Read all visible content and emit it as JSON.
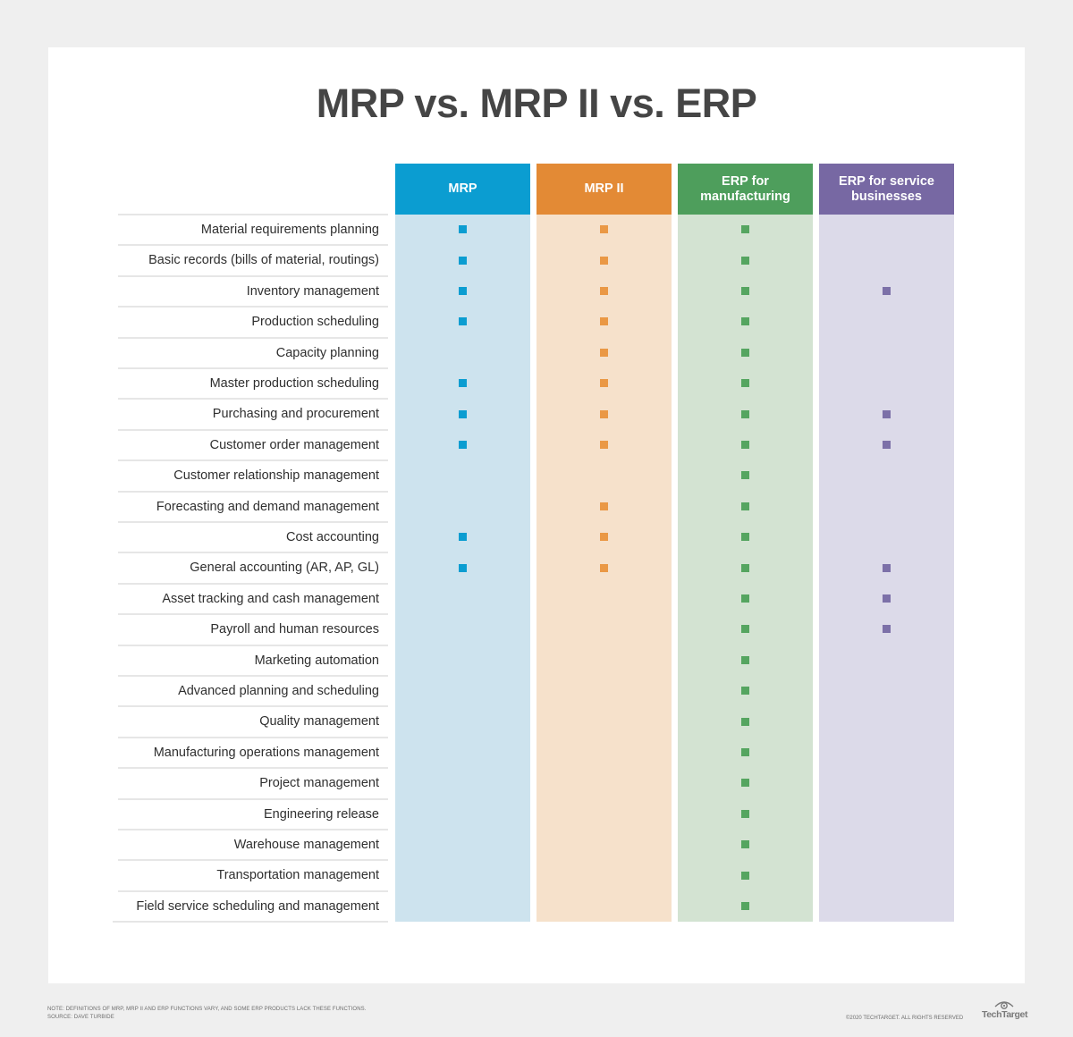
{
  "title": "MRP vs. MRP II vs. ERP",
  "columns": [
    {
      "label": "MRP",
      "header_color": "#0b9dd1",
      "bg_color": "#cde3ee",
      "mark_color": "#0b9dd1"
    },
    {
      "label": "MRP II",
      "header_color": "#e38a35",
      "bg_color": "#f6e1cb",
      "mark_color": "#ea9845"
    },
    {
      "label": "ERP for\nmanufacturing",
      "header_color": "#4e9e5c",
      "bg_color": "#d3e3d2",
      "mark_color": "#55a560"
    },
    {
      "label": "ERP for service\nbusinesses",
      "header_color": "#7768a3",
      "bg_color": "#dcdae9",
      "mark_color": "#7c70a8"
    }
  ],
  "rows": [
    {
      "label": "Material requirements planning",
      "marks": [
        true,
        true,
        true,
        false
      ]
    },
    {
      "label": "Basic records (bills of material, routings)",
      "marks": [
        true,
        true,
        true,
        false
      ]
    },
    {
      "label": "Inventory management",
      "marks": [
        true,
        true,
        true,
        true
      ]
    },
    {
      "label": "Production scheduling",
      "marks": [
        true,
        true,
        true,
        false
      ]
    },
    {
      "label": "Capacity planning",
      "marks": [
        false,
        true,
        true,
        false
      ]
    },
    {
      "label": "Master production scheduling",
      "marks": [
        true,
        true,
        true,
        false
      ]
    },
    {
      "label": "Purchasing and procurement",
      "marks": [
        true,
        true,
        true,
        true
      ]
    },
    {
      "label": "Customer order management",
      "marks": [
        true,
        true,
        true,
        true
      ]
    },
    {
      "label": "Customer relationship management",
      "marks": [
        false,
        false,
        true,
        false
      ]
    },
    {
      "label": "Forecasting and demand management",
      "marks": [
        false,
        true,
        true,
        false
      ]
    },
    {
      "label": "Cost accounting",
      "marks": [
        true,
        true,
        true,
        false
      ]
    },
    {
      "label": "General accounting (AR, AP, GL)",
      "marks": [
        true,
        true,
        true,
        true
      ]
    },
    {
      "label": "Asset tracking and cash management",
      "marks": [
        false,
        false,
        true,
        true
      ]
    },
    {
      "label": "Payroll and human resources",
      "marks": [
        false,
        false,
        true,
        true
      ]
    },
    {
      "label": "Marketing automation",
      "marks": [
        false,
        false,
        true,
        false
      ]
    },
    {
      "label": "Advanced planning and scheduling",
      "marks": [
        false,
        false,
        true,
        false
      ]
    },
    {
      "label": "Quality management",
      "marks": [
        false,
        false,
        true,
        false
      ]
    },
    {
      "label": "Manufacturing operations management",
      "marks": [
        false,
        false,
        true,
        false
      ]
    },
    {
      "label": "Project management",
      "marks": [
        false,
        false,
        true,
        false
      ]
    },
    {
      "label": "Engineering release",
      "marks": [
        false,
        false,
        true,
        false
      ]
    },
    {
      "label": "Warehouse management",
      "marks": [
        false,
        false,
        true,
        false
      ]
    },
    {
      "label": "Transportation management",
      "marks": [
        false,
        false,
        true,
        false
      ]
    },
    {
      "label": "Field service scheduling and management",
      "marks": [
        false,
        false,
        true,
        false
      ]
    }
  ],
  "footer": {
    "note_line1": "NOTE: DEFINITIONS OF MRP, MRP II AND ERP FUNCTIONS VARY, AND SOME ERP PRODUCTS LACK THESE FUNCTIONS.",
    "note_line2": "SOURCE: DAVE TURBIDE",
    "copyright": "©2020 TECHTARGET. ALL RIGHTS RESERVED",
    "logo": "TechTarget"
  }
}
